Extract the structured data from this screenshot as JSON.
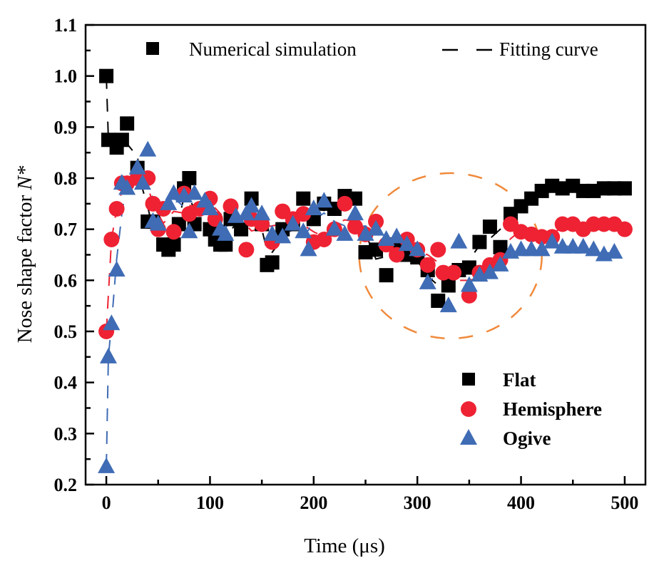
{
  "chart_data": {
    "type": "scatter",
    "xlabel": "Time (μs)",
    "ylabel": "Nose shape factor ",
    "ylabel_symbol": "N*",
    "xlim": [
      -20,
      520
    ],
    "ylim": [
      0.2,
      1.1
    ],
    "xticks": [
      "0",
      "100",
      "200",
      "300",
      "400",
      "500"
    ],
    "xtick_values": [
      0,
      100,
      200,
      300,
      400,
      500
    ],
    "yticks": [
      "1.1",
      "1.0",
      "0.9",
      "0.8",
      "0.7",
      "0.6",
      "0.5",
      "0.4",
      "0.3",
      "0.2"
    ],
    "ytick_values": [
      1.1,
      1.0,
      0.9,
      0.8,
      0.7,
      0.6,
      0.5,
      0.4,
      0.3,
      0.2
    ],
    "grid": false,
    "legend_top": {
      "marker_label": "Numerical simulation",
      "line_label": "Fitting curve"
    },
    "annotation": "dashed orange ellipse around 280–420 μs",
    "annotation_color": "#f08a3c",
    "series": [
      {
        "name": "Flat",
        "marker": "square",
        "color": "#000000",
        "x": [
          0,
          2,
          10,
          15,
          20,
          30,
          35,
          40,
          45,
          55,
          60,
          65,
          70,
          75,
          80,
          85,
          100,
          105,
          110,
          115,
          120,
          130,
          140,
          150,
          155,
          160,
          170,
          180,
          190,
          200,
          210,
          220,
          230,
          240,
          250,
          260,
          270,
          280,
          290,
          300,
          310,
          320,
          330,
          340,
          350,
          360,
          370,
          380,
          390,
          400,
          410,
          420,
          430,
          440,
          450,
          460,
          470,
          480,
          490,
          500
        ],
        "y": [
          1.0,
          0.875,
          0.86,
          0.875,
          0.907,
          0.82,
          0.8,
          0.715,
          0.715,
          0.67,
          0.66,
          0.67,
          0.71,
          0.78,
          0.8,
          0.71,
          0.7,
          0.68,
          0.67,
          0.67,
          0.72,
          0.7,
          0.76,
          0.71,
          0.63,
          0.635,
          0.7,
          0.71,
          0.76,
          0.72,
          0.75,
          0.74,
          0.765,
          0.76,
          0.655,
          0.66,
          0.61,
          0.67,
          0.65,
          0.645,
          0.62,
          0.56,
          0.59,
          0.62,
          0.625,
          0.675,
          0.705,
          0.665,
          0.73,
          0.745,
          0.76,
          0.775,
          0.785,
          0.78,
          0.785,
          0.775,
          0.775,
          0.78,
          0.78,
          0.78
        ]
      },
      {
        "name": "Hemisphere",
        "marker": "circle",
        "color": "#ee2233",
        "x": [
          0,
          5,
          10,
          15,
          20,
          30,
          40,
          45,
          50,
          55,
          65,
          75,
          80,
          90,
          100,
          105,
          120,
          135,
          140,
          150,
          160,
          170,
          180,
          190,
          200,
          210,
          220,
          230,
          240,
          250,
          260,
          270,
          280,
          290,
          300,
          310,
          320,
          325,
          335,
          350,
          360,
          370,
          380,
          390,
          400,
          410,
          420,
          430,
          440,
          450,
          460,
          470,
          480,
          490,
          500
        ],
        "y": [
          0.5,
          0.68,
          0.74,
          0.79,
          0.79,
          0.8,
          0.8,
          0.75,
          0.7,
          0.74,
          0.695,
          0.77,
          0.73,
          0.74,
          0.76,
          0.72,
          0.745,
          0.66,
          0.72,
          0.71,
          0.675,
          0.735,
          0.72,
          0.73,
          0.675,
          0.68,
          0.7,
          0.75,
          0.705,
          0.69,
          0.715,
          0.67,
          0.65,
          0.68,
          0.66,
          0.63,
          0.66,
          0.615,
          0.615,
          0.57,
          0.615,
          0.63,
          0.64,
          0.71,
          0.695,
          0.69,
          0.685,
          0.685,
          0.71,
          0.71,
          0.7,
          0.71,
          0.71,
          0.71,
          0.7
        ]
      },
      {
        "name": "Ogive",
        "marker": "triangle",
        "color": "#3f6cb5",
        "x": [
          0,
          2,
          5,
          10,
          15,
          20,
          30,
          35,
          40,
          45,
          50,
          60,
          65,
          75,
          80,
          85,
          95,
          100,
          110,
          115,
          125,
          135,
          140,
          150,
          160,
          170,
          180,
          190,
          195,
          200,
          210,
          220,
          230,
          240,
          250,
          260,
          270,
          280,
          290,
          300,
          310,
          330,
          340,
          350,
          360,
          370,
          380,
          390,
          400,
          410,
          420,
          430,
          440,
          450,
          460,
          470,
          480,
          490
        ],
        "y": [
          0.235,
          0.45,
          0.515,
          0.62,
          0.79,
          0.78,
          0.82,
          0.79,
          0.855,
          0.715,
          0.71,
          0.75,
          0.77,
          0.765,
          0.695,
          0.77,
          0.755,
          0.74,
          0.7,
          0.69,
          0.725,
          0.73,
          0.745,
          0.73,
          0.69,
          0.685,
          0.71,
          0.695,
          0.66,
          0.74,
          0.755,
          0.7,
          0.69,
          0.73,
          0.69,
          0.7,
          0.68,
          0.685,
          0.67,
          0.66,
          0.595,
          0.55,
          0.675,
          0.59,
          0.61,
          0.615,
          0.63,
          0.655,
          0.66,
          0.66,
          0.66,
          0.675,
          0.665,
          0.665,
          0.665,
          0.66,
          0.65,
          0.655
        ]
      }
    ]
  }
}
